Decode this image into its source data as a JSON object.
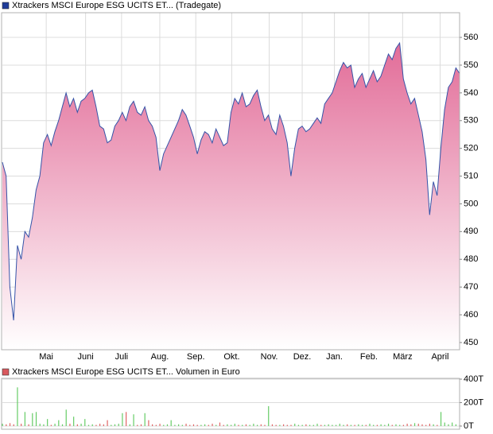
{
  "chart_data": [
    {
      "type": "area",
      "legend": "Xtrackers MSCI Europe ESG UCITS ET... (Tradegate)",
      "legend_color": "#1f3c99",
      "line_color": "#3553a8",
      "fill_top": "#e26c98",
      "fill_bottom": "#ffffff",
      "values": [
        515,
        510,
        470,
        458,
        485,
        480,
        490,
        488,
        495,
        505,
        510,
        522,
        525,
        521,
        526,
        530,
        535,
        540,
        535,
        538,
        533,
        537,
        538,
        540,
        541,
        535,
        528,
        527,
        522,
        523,
        528,
        530,
        533,
        530,
        535,
        537,
        533,
        532,
        535,
        530,
        528,
        524,
        512,
        518,
        521,
        524,
        527,
        530,
        534,
        532,
        528,
        524,
        518,
        523,
        526,
        525,
        522,
        527,
        524,
        521,
        522,
        533,
        538,
        536,
        540,
        535,
        536,
        539,
        541,
        535,
        530,
        532,
        527,
        525,
        532,
        528,
        522,
        510,
        520,
        527,
        528,
        526,
        527,
        529,
        531,
        529,
        536,
        538,
        540,
        544,
        548,
        551,
        549,
        550,
        542,
        545,
        547,
        542,
        545,
        548,
        544,
        546,
        550,
        554,
        552,
        556,
        558,
        545,
        540,
        536,
        538,
        532,
        526,
        516,
        496,
        508,
        503,
        520,
        534,
        542,
        544,
        549,
        547
      ],
      "xlim": [
        0,
        122
      ],
      "xticks": [
        {
          "value": 11.7,
          "label": "Mai"
        },
        {
          "value": 22.2,
          "label": "Juni"
        },
        {
          "value": 31.8,
          "label": "Juli"
        },
        {
          "value": 42,
          "label": "Aug."
        },
        {
          "value": 51.6,
          "label": "Sep."
        },
        {
          "value": 61.2,
          "label": "Okt."
        },
        {
          "value": 71.2,
          "label": "Nov."
        },
        {
          "value": 80,
          "label": "Dez."
        },
        {
          "value": 88.6,
          "label": "Jan."
        },
        {
          "value": 97.8,
          "label": "Feb."
        },
        {
          "value": 106.8,
          "label": "März"
        },
        {
          "value": 116.8,
          "label": "April"
        }
      ],
      "ylim": [
        447.4,
        568.9
      ],
      "yticks": [
        450,
        460,
        470,
        480,
        490,
        500,
        510,
        520,
        530,
        540,
        550,
        560
      ],
      "grid": true
    },
    {
      "type": "volume",
      "legend": "Xtrackers MSCI Europe ESG UCITS ET... Volumen in Euro",
      "legend_color": "#d9595e",
      "up_color": "#66cc66",
      "down_color": "#e06666",
      "values": [
        20,
        15,
        25,
        15,
        330,
        20,
        120,
        15,
        110,
        120,
        20,
        15,
        60,
        10,
        20,
        50,
        15,
        140,
        20,
        80,
        15,
        20,
        60,
        10,
        15,
        10,
        20,
        15,
        50,
        10,
        15,
        20,
        110,
        120,
        15,
        100,
        10,
        15,
        110,
        50,
        15,
        10,
        20,
        10,
        15,
        50,
        10,
        15,
        10,
        20,
        10,
        15,
        10,
        10,
        15,
        10,
        20,
        10,
        30,
        10,
        15,
        10,
        20,
        10,
        10,
        15,
        10,
        20,
        10,
        15,
        10,
        170,
        15,
        10,
        10,
        15,
        10,
        10,
        20,
        10,
        10,
        15,
        10,
        10,
        20,
        10,
        10,
        15,
        10,
        10,
        20,
        10,
        15,
        10,
        10,
        15,
        10,
        10,
        20,
        10,
        10,
        15,
        10,
        20,
        10,
        15,
        10,
        10,
        20,
        15,
        25,
        20,
        15,
        10,
        20,
        15,
        10,
        120,
        30,
        15,
        30,
        15,
        10
      ],
      "xlim": [
        0,
        122
      ],
      "ylim": [
        0,
        400
      ],
      "yticks": [
        {
          "value": 0,
          "label": "0T"
        },
        {
          "value": 200,
          "label": "200T"
        },
        {
          "value": 400,
          "label": "400T"
        }
      ],
      "grid": true
    }
  ]
}
